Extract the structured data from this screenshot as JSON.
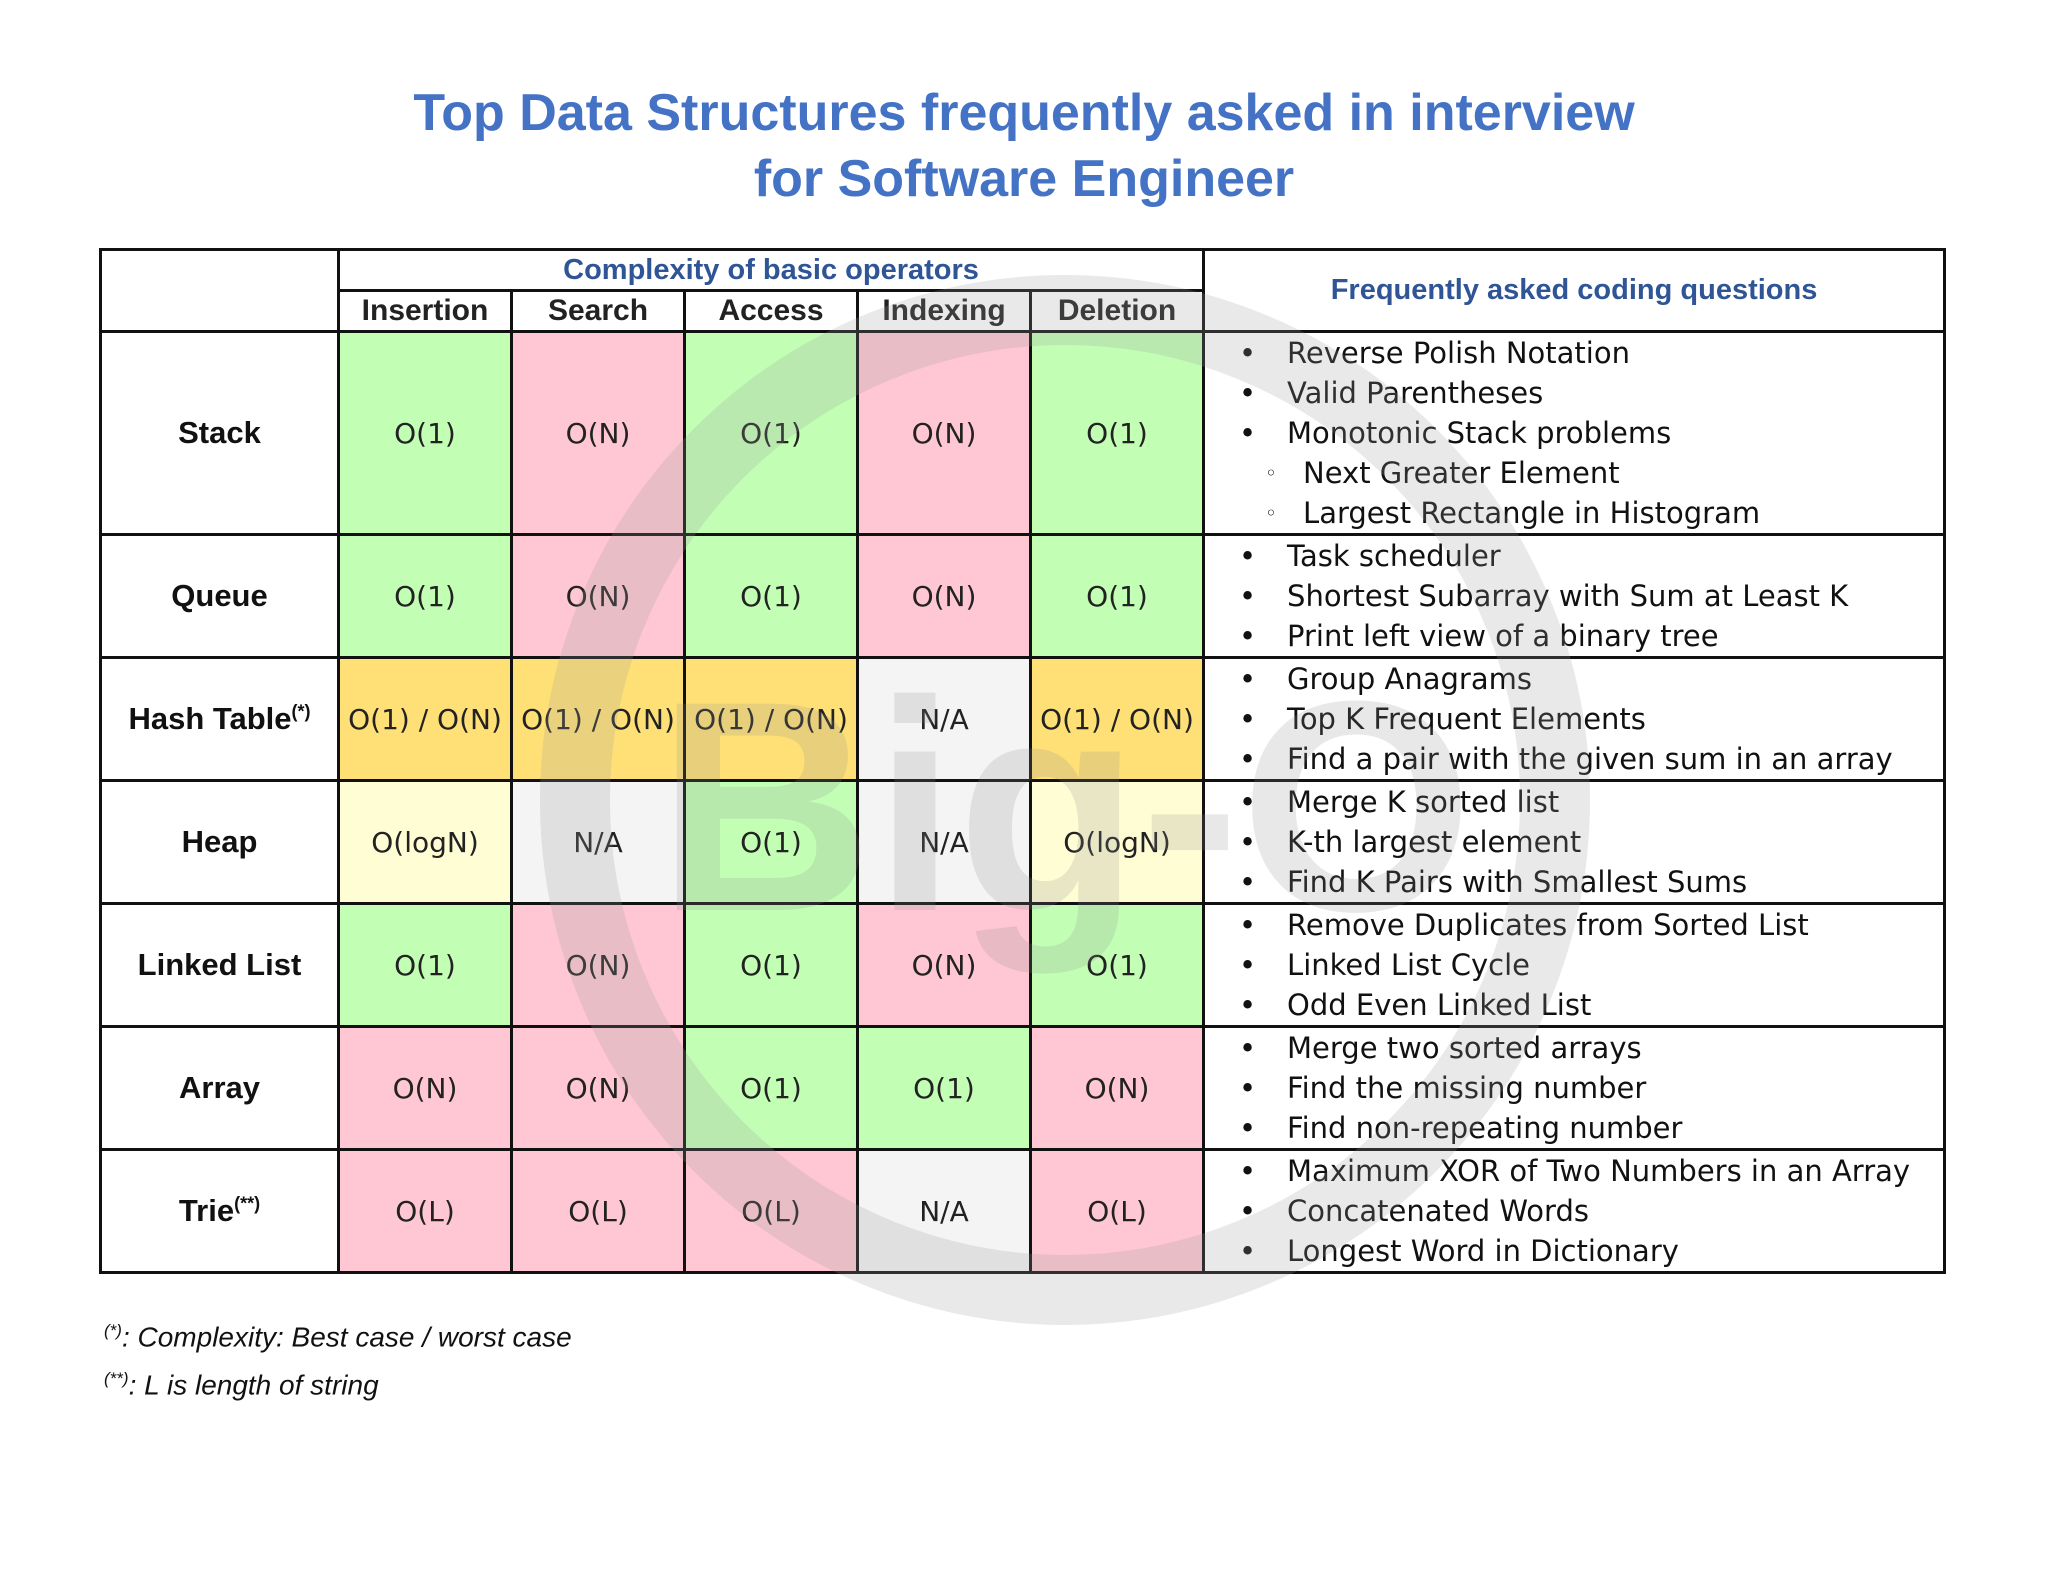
{
  "title": {
    "line1": "Top Data Structures frequently asked in interview",
    "line2": "for Software Engineer"
  },
  "watermark_text": "Big-O",
  "header": {
    "group": "Complexity of basic operators",
    "faq": "Frequently asked coding questions",
    "ops": [
      "Insertion",
      "Search",
      "Access",
      "Indexing",
      "Deletion"
    ]
  },
  "colors": {
    "green": "#C2FFB5",
    "red": "#FFC7D3",
    "yellow": "#FFE077",
    "lightyellow": "#FFFDD3",
    "gray": "#F4F4F4",
    "title": "#4472C4",
    "header": "#2F5597"
  },
  "rows": [
    {
      "name": "Stack",
      "mark": "",
      "cells": [
        "O(1)",
        "O(N)",
        "O(1)",
        "O(N)",
        "O(1)"
      ],
      "questions": [
        "Reverse Polish Notation",
        "Valid Parentheses",
        "Monotonic Stack problems"
      ],
      "subquestions": [
        "Next Greater Element",
        "Largest Rectangle in Histogram"
      ]
    },
    {
      "name": "Queue",
      "mark": "",
      "cells": [
        "O(1)",
        "O(N)",
        "O(1)",
        "O(N)",
        "O(1)"
      ],
      "questions": [
        "Task scheduler",
        "Shortest Subarray with Sum at Least K",
        "Print left view of a binary tree"
      ]
    },
    {
      "name": "Hash Table",
      "mark": "(*)",
      "cells": [
        "O(1) / O(N)",
        "O(1) / O(N)",
        "O(1) / O(N)",
        "N/A",
        "O(1) / O(N)"
      ],
      "questions": [
        "Group Anagrams",
        "Top K Frequent Elements",
        "Find a pair with the given sum in an array"
      ]
    },
    {
      "name": "Heap",
      "mark": "",
      "cells": [
        "O(logN)",
        "N/A",
        "O(1)",
        "N/A",
        "O(logN)"
      ],
      "questions": [
        "Merge K sorted list",
        "K-th largest element",
        "Find K Pairs with Smallest Sums"
      ]
    },
    {
      "name": "Linked List",
      "mark": "",
      "cells": [
        "O(1)",
        "O(N)",
        "O(1)",
        "O(N)",
        "O(1)"
      ],
      "questions": [
        "Remove Duplicates from Sorted List",
        "Linked List Cycle",
        "Odd Even Linked List"
      ]
    },
    {
      "name": "Array",
      "mark": "",
      "cells": [
        "O(N)",
        "O(N)",
        "O(1)",
        "O(1)",
        "O(N)"
      ],
      "questions": [
        "Merge two sorted arrays",
        "Find the missing number",
        "Find non-repeating number"
      ]
    },
    {
      "name": "Trie",
      "mark": "(**)",
      "cells": [
        "O(L)",
        "O(L)",
        "O(L)",
        "N/A",
        "O(L)"
      ],
      "questions": [
        "Maximum XOR of Two Numbers in an Array",
        "Concatenated Words",
        "Longest Word in Dictionary"
      ]
    }
  ],
  "notes": [
    {
      "mark": "(*)",
      "text": ": Complexity: Best case / worst case"
    },
    {
      "mark": "(**)",
      "text": ": L is length of string"
    }
  ]
}
